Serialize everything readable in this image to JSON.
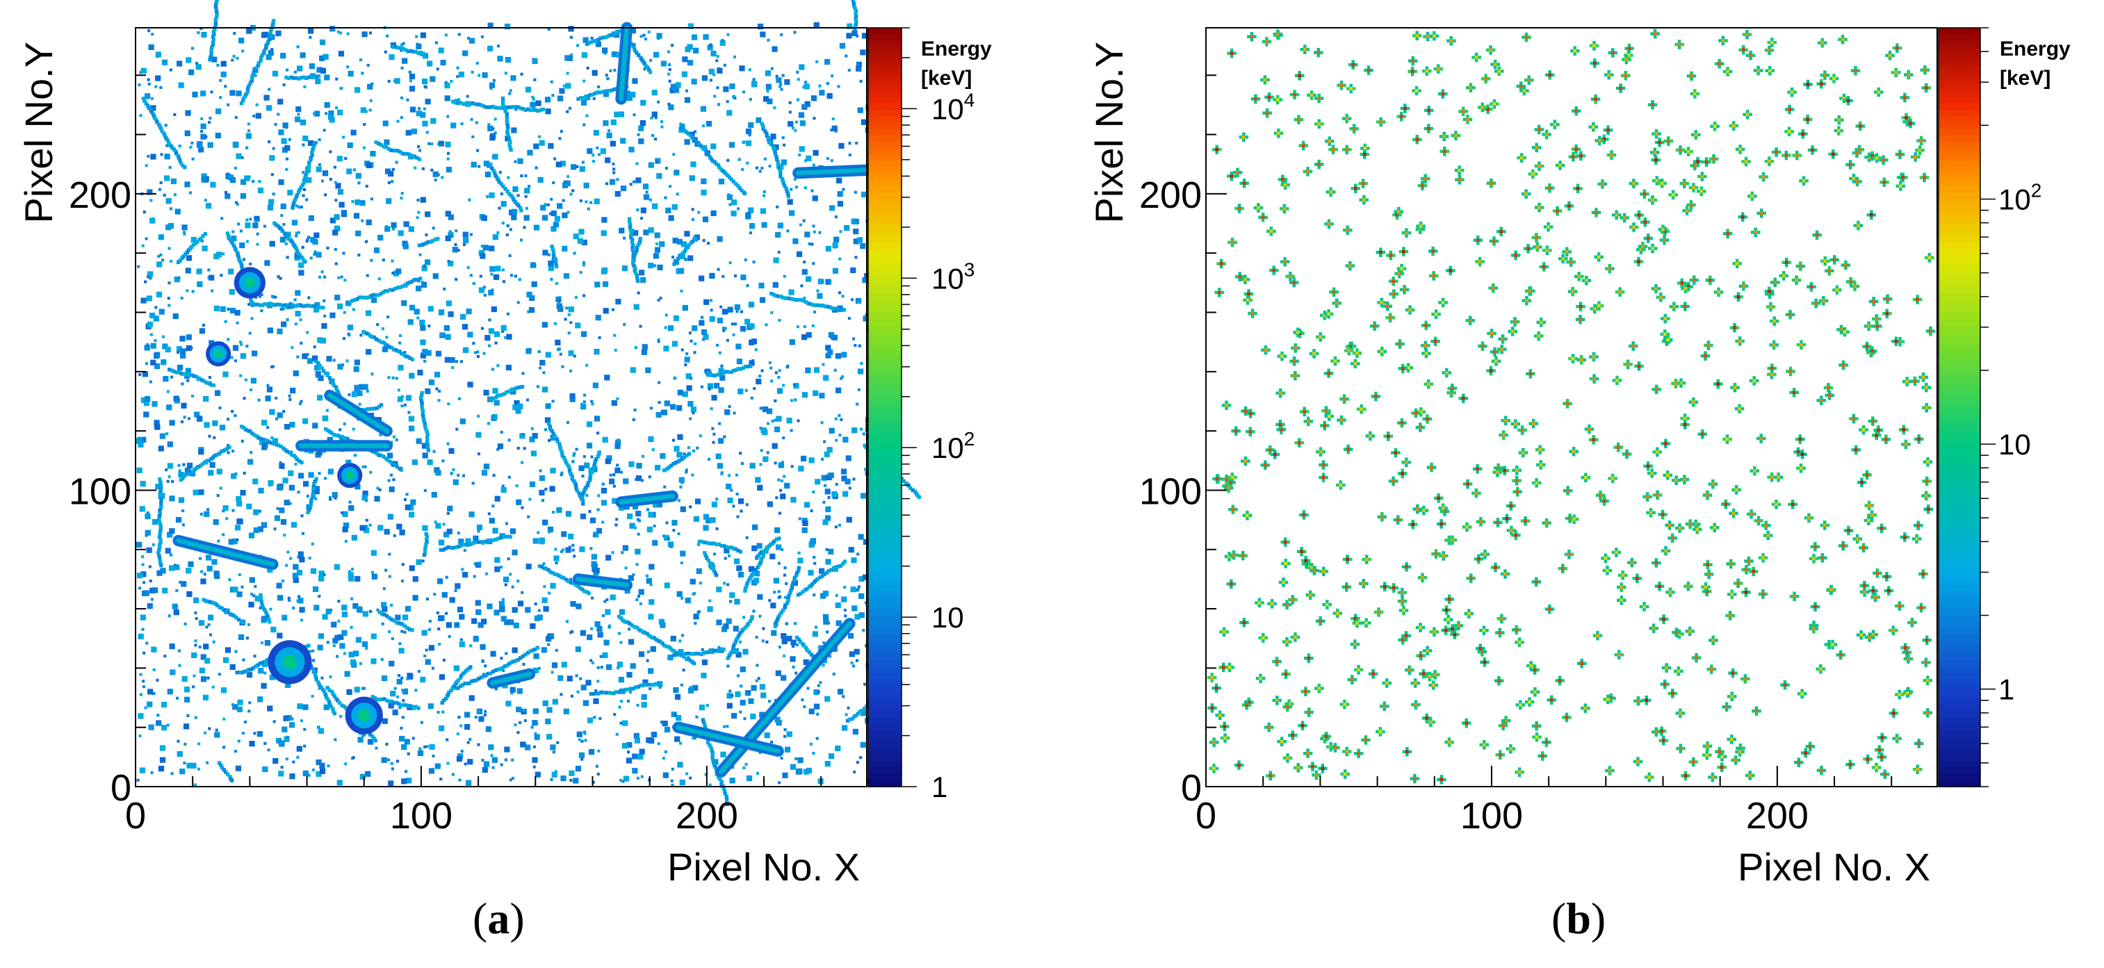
{
  "figure": {
    "panels": [
      {
        "id": "a",
        "label_open": "(",
        "label_letter": "a",
        "label_close": ")"
      },
      {
        "id": "b",
        "label_open": "(",
        "label_letter": "b",
        "label_close": ")"
      }
    ]
  },
  "chart_data": [
    {
      "type": "heatmap",
      "panel": "a",
      "description_visible": "pixel hit map with long tracks and round blobs",
      "xlabel": "Pixel No. X",
      "ylabel": "Pixel No.Y",
      "xlim": [
        0,
        256
      ],
      "ylim": [
        0,
        256
      ],
      "xticks": [
        "0",
        "100",
        "200"
      ],
      "yticks": [
        "0",
        "100",
        "200"
      ],
      "colorbar": {
        "title_line1": "Energy",
        "title_line2": "[keV]",
        "scale": "log",
        "range": [
          1,
          30000
        ],
        "ticks": [
          {
            "base": "1",
            "exp": "",
            "value": 1
          },
          {
            "base": "10",
            "exp": "",
            "value": 10
          },
          {
            "base": "10",
            "exp": "2",
            "value": 100
          },
          {
            "base": "10",
            "exp": "3",
            "value": 1000
          },
          {
            "base": "10",
            "exp": "4",
            "value": 10000
          }
        ]
      },
      "blobs": [
        {
          "x": 40,
          "y": 170,
          "r": 5
        },
        {
          "x": 29,
          "y": 146,
          "r": 4
        },
        {
          "x": 54,
          "y": 42,
          "r": 7
        },
        {
          "x": 80,
          "y": 24,
          "r": 6
        },
        {
          "x": 75,
          "y": 105,
          "r": 4
        }
      ],
      "tracks": [
        {
          "x1": 15,
          "y1": 83,
          "x2": 48,
          "y2": 75
        },
        {
          "x1": 58,
          "y1": 115,
          "x2": 88,
          "y2": 115
        },
        {
          "x1": 68,
          "y1": 132,
          "x2": 88,
          "y2": 120
        },
        {
          "x1": 155,
          "y1": 70,
          "x2": 172,
          "y2": 68
        },
        {
          "x1": 232,
          "y1": 207,
          "x2": 256,
          "y2": 208
        },
        {
          "x1": 170,
          "y1": 232,
          "x2": 172,
          "y2": 256
        },
        {
          "x1": 205,
          "y1": 5,
          "x2": 250,
          "y2": 55
        },
        {
          "x1": 190,
          "y1": 20,
          "x2": 225,
          "y2": 12
        },
        {
          "x1": 125,
          "y1": 35,
          "x2": 138,
          "y2": 38
        },
        {
          "x1": 170,
          "y1": 96,
          "x2": 188,
          "y2": 98
        }
      ]
    },
    {
      "type": "heatmap",
      "panel": "b",
      "description_visible": "sparse pixel hits (small crosses)",
      "xlabel": "Pixel No. X",
      "ylabel": "Pixel No.Y",
      "xlim": [
        0,
        256
      ],
      "ylim": [
        0,
        256
      ],
      "xticks": [
        "0",
        "100",
        "200"
      ],
      "yticks": [
        "0",
        "100",
        "200"
      ],
      "colorbar": {
        "title_line1": "Energy",
        "title_line2": "[keV]",
        "scale": "log",
        "range": [
          0.4,
          500
        ],
        "ticks": [
          {
            "base": "1",
            "exp": "",
            "value": 1
          },
          {
            "base": "10",
            "exp": "",
            "value": 10
          },
          {
            "base": "10",
            "exp": "2",
            "value": 100
          }
        ]
      }
    }
  ]
}
